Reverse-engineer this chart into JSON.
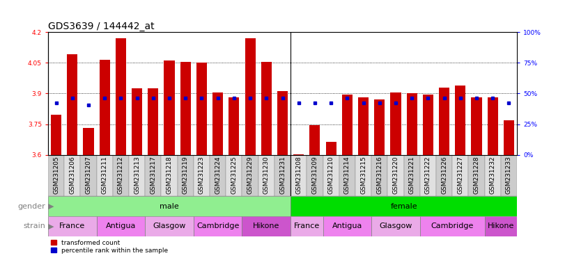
{
  "title": "GDS3639 / 144442_at",
  "samples": [
    "GSM231205",
    "GSM231206",
    "GSM231207",
    "GSM231211",
    "GSM231212",
    "GSM231213",
    "GSM231217",
    "GSM231218",
    "GSM231219",
    "GSM231223",
    "GSM231224",
    "GSM231225",
    "GSM231229",
    "GSM231230",
    "GSM231231",
    "GSM231208",
    "GSM231209",
    "GSM231210",
    "GSM231214",
    "GSM231215",
    "GSM231216",
    "GSM231220",
    "GSM231221",
    "GSM231222",
    "GSM231226",
    "GSM231227",
    "GSM231228",
    "GSM231232",
    "GSM231233"
  ],
  "red_values": [
    3.795,
    4.09,
    3.73,
    4.065,
    4.17,
    3.925,
    3.925,
    4.06,
    4.055,
    4.05,
    3.905,
    3.88,
    4.17,
    4.055,
    3.91,
    3.601,
    3.745,
    3.665,
    3.895,
    3.88,
    3.87,
    3.905,
    3.9,
    3.895,
    3.93,
    3.94,
    3.88,
    3.88,
    3.77
  ],
  "blue_values": [
    3.855,
    3.877,
    3.845,
    3.878,
    3.878,
    3.878,
    3.878,
    3.878,
    3.878,
    3.878,
    3.878,
    3.878,
    3.878,
    3.878,
    3.878,
    3.855,
    3.855,
    3.855,
    3.878,
    3.855,
    3.855,
    3.855,
    3.878,
    3.878,
    3.878,
    3.878,
    3.878,
    3.878,
    3.855
  ],
  "gender_groups": [
    {
      "label": "male",
      "start": 0,
      "end": 15,
      "color": "#90EE90"
    },
    {
      "label": "female",
      "start": 15,
      "end": 29,
      "color": "#00DD00"
    }
  ],
  "strain_groups": [
    {
      "label": "France",
      "start": 0,
      "end": 3,
      "color": "#EAAAE8"
    },
    {
      "label": "Antigua",
      "start": 3,
      "end": 6,
      "color": "#EE82EE"
    },
    {
      "label": "Glasgow",
      "start": 6,
      "end": 9,
      "color": "#EAAAE8"
    },
    {
      "label": "Cambridge",
      "start": 9,
      "end": 12,
      "color": "#EE82EE"
    },
    {
      "label": "Hikone",
      "start": 12,
      "end": 15,
      "color": "#CC55CC"
    },
    {
      "label": "France",
      "start": 15,
      "end": 17,
      "color": "#EAAAE8"
    },
    {
      "label": "Antigua",
      "start": 17,
      "end": 20,
      "color": "#EE82EE"
    },
    {
      "label": "Glasgow",
      "start": 20,
      "end": 23,
      "color": "#EAAAE8"
    },
    {
      "label": "Cambridge",
      "start": 23,
      "end": 27,
      "color": "#EE82EE"
    },
    {
      "label": "Hikone",
      "start": 27,
      "end": 29,
      "color": "#CC55CC"
    }
  ],
  "ymin": 3.6,
  "ymax": 4.2,
  "yticks": [
    3.6,
    3.75,
    3.9,
    4.05,
    4.2
  ],
  "right_yticks": [
    0,
    25,
    50,
    75,
    100
  ],
  "bar_color": "#CC0000",
  "dot_color": "#0000CC",
  "title_fontsize": 10,
  "tick_fontsize": 6.5,
  "label_fontsize": 8,
  "annot_fontsize": 7.5
}
